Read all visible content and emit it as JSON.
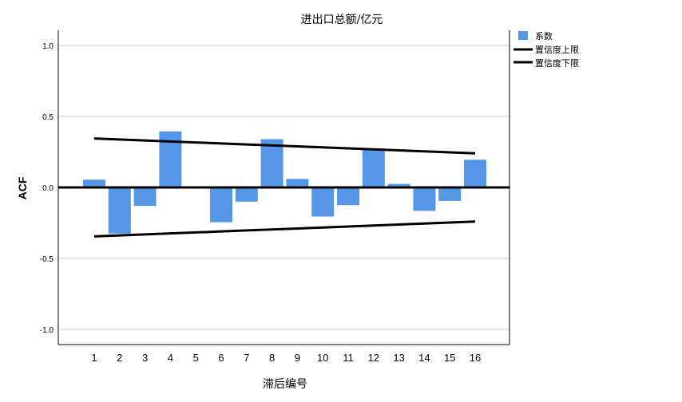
{
  "chart_data": {
    "type": "bar",
    "title": "进出口总额/亿元",
    "xlabel": "滞后编号",
    "ylabel": "ACF",
    "categories": [
      "1",
      "2",
      "3",
      "4",
      "5",
      "6",
      "7",
      "8",
      "9",
      "10",
      "11",
      "12",
      "13",
      "14",
      "15",
      "16"
    ],
    "series": [
      {
        "name": "系数",
        "type": "bar",
        "color": "#5596e6",
        "values": [
          0.055,
          -0.325,
          -0.13,
          0.395,
          0.0,
          -0.245,
          -0.1,
          0.34,
          0.06,
          -0.205,
          -0.125,
          0.27,
          0.025,
          -0.165,
          -0.095,
          0.195
        ]
      },
      {
        "name": "置信度上限",
        "type": "line",
        "color": "#000000",
        "values": [
          0.345,
          0.338,
          0.331,
          0.324,
          0.317,
          0.31,
          0.303,
          0.296,
          0.289,
          0.282,
          0.275,
          0.268,
          0.261,
          0.254,
          0.247,
          0.24
        ]
      },
      {
        "name": "置信度下限",
        "type": "line",
        "color": "#000000",
        "values": [
          -0.345,
          -0.338,
          -0.331,
          -0.324,
          -0.317,
          -0.31,
          -0.303,
          -0.296,
          -0.289,
          -0.282,
          -0.275,
          -0.268,
          -0.261,
          -0.254,
          -0.247,
          -0.24
        ]
      }
    ],
    "ylim": [
      -1.1,
      1.1
    ],
    "yticks": [
      -1.0,
      -0.5,
      0.0,
      0.5,
      1.0
    ],
    "ytick_labels": [
      "-1.0",
      "-0.5",
      "0.0",
      "0.5",
      "1.0"
    ],
    "grid": true,
    "legend_position": "top-right"
  }
}
